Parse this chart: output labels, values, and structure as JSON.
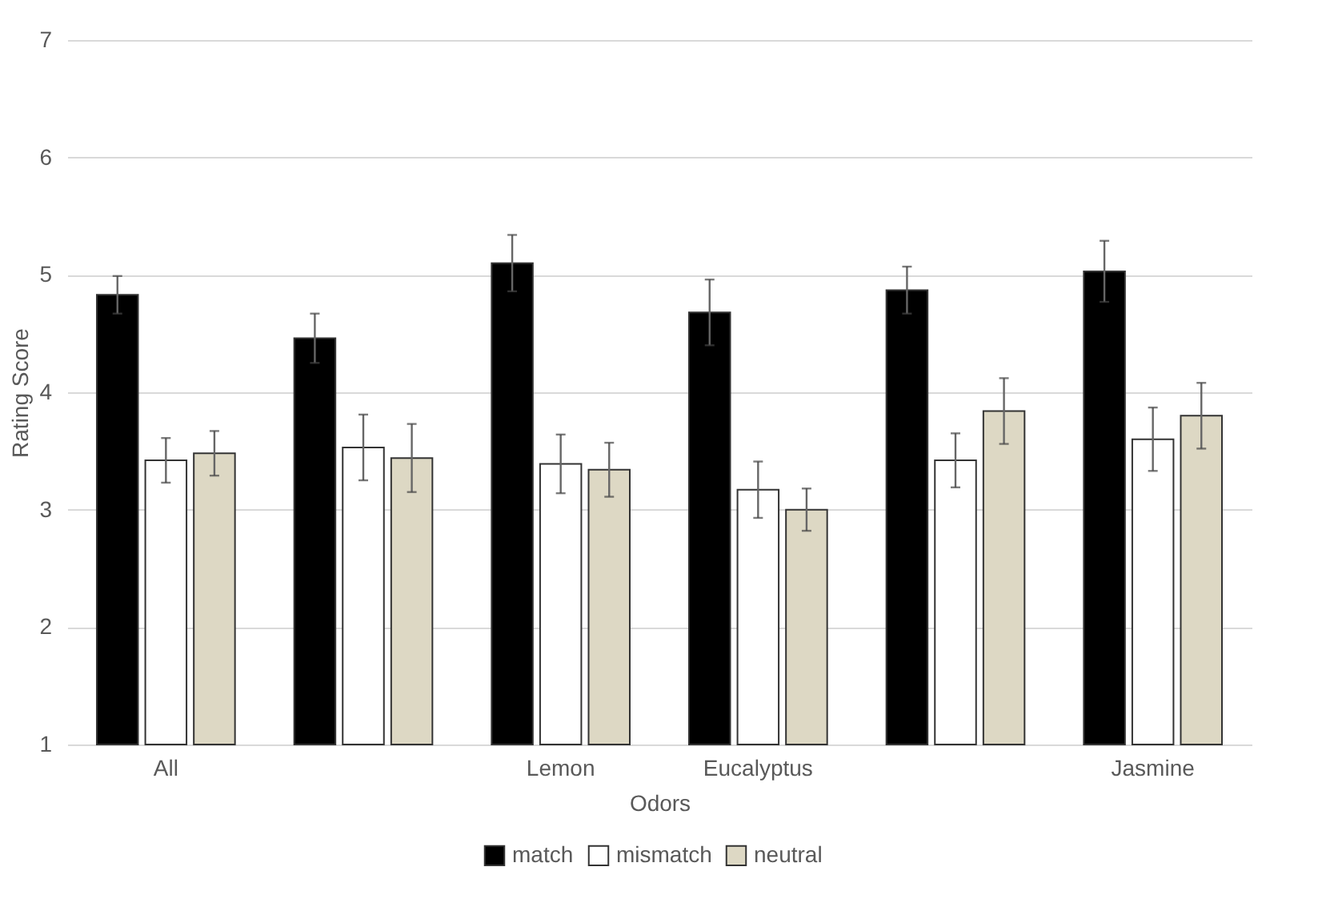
{
  "chart_data": {
    "type": "bar",
    "xlabel": "Odors",
    "ylabel": "Rating Score",
    "categories": [
      "All",
      null,
      "Lemon",
      "Eucalyptus",
      null,
      "Jasmine"
    ],
    "series": [
      {
        "name": "match",
        "color": "#000000",
        "values": [
          4.83,
          4.46,
          5.1,
          4.68,
          4.87,
          5.03
        ],
        "errors": [
          0.16,
          0.21,
          0.24,
          0.28,
          0.2,
          0.26
        ]
      },
      {
        "name": "mismatch",
        "color": "#ffffff",
        "values": [
          3.42,
          3.53,
          3.39,
          3.17,
          3.42,
          3.6
        ],
        "errors": [
          0.19,
          0.28,
          0.25,
          0.24,
          0.23,
          0.27
        ]
      },
      {
        "name": "neutral",
        "color": "#ddd8c4",
        "values": [
          3.48,
          3.44,
          3.34,
          3.0,
          3.84,
          3.8
        ],
        "errors": [
          0.19,
          0.29,
          0.23,
          0.18,
          0.28,
          0.28
        ]
      }
    ],
    "ylim": [
      1,
      7
    ],
    "yticks": [
      1,
      2,
      3,
      4,
      5,
      6,
      7
    ],
    "grid": "y",
    "legend": "bottom"
  }
}
